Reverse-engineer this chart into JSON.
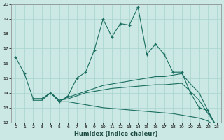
{
  "xlabel": "Humidex (Indice chaleur)",
  "xlim": [
    -0.5,
    23.5
  ],
  "ylim": [
    12,
    20
  ],
  "yticks": [
    12,
    13,
    14,
    15,
    16,
    17,
    18,
    19,
    20
  ],
  "xticks": [
    0,
    1,
    2,
    3,
    4,
    5,
    6,
    7,
    8,
    9,
    10,
    11,
    12,
    13,
    14,
    15,
    16,
    17,
    18,
    19,
    20,
    21,
    22,
    23
  ],
  "bg_color": "#cce8e4",
  "grid_color": "#a8d4cf",
  "line_color": "#1a6e60",
  "lines": [
    {
      "x": [
        0,
        1,
        2,
        3,
        4,
        5,
        6,
        7,
        8,
        9,
        10,
        11,
        12,
        13,
        14,
        15,
        16,
        17,
        18,
        19,
        20,
        21,
        22,
        23
      ],
      "y": [
        16.4,
        15.3,
        13.6,
        13.6,
        14.0,
        13.4,
        13.8,
        15.0,
        15.4,
        16.9,
        19.0,
        17.8,
        18.7,
        18.6,
        19.8,
        16.6,
        17.3,
        16.6,
        15.4,
        15.4,
        14.0,
        13.0,
        12.8,
        11.6
      ],
      "marker": true
    },
    {
      "x": [
        2,
        3,
        4,
        5,
        6,
        7,
        8,
        9,
        10,
        11,
        12,
        13,
        14,
        15,
        16,
        17,
        18,
        19,
        20,
        21,
        22,
        23
      ],
      "y": [
        13.6,
        13.6,
        14.0,
        13.5,
        13.7,
        13.9,
        14.1,
        14.3,
        14.5,
        14.6,
        14.7,
        14.8,
        14.9,
        15.0,
        15.1,
        15.1,
        15.2,
        15.3,
        14.6,
        14.0,
        12.8,
        11.7
      ],
      "marker": false
    },
    {
      "x": [
        2,
        3,
        4,
        5,
        6,
        7,
        8,
        9,
        10,
        11,
        12,
        13,
        14,
        15,
        16,
        17,
        18,
        19,
        20,
        21,
        22,
        23
      ],
      "y": [
        13.6,
        13.6,
        14.0,
        13.5,
        13.6,
        13.8,
        14.0,
        14.1,
        14.2,
        14.3,
        14.35,
        14.4,
        14.45,
        14.5,
        14.55,
        14.55,
        14.6,
        14.65,
        14.1,
        13.5,
        12.6,
        11.8
      ],
      "marker": false
    },
    {
      "x": [
        2,
        3,
        4,
        5,
        6,
        7,
        8,
        9,
        10,
        11,
        12,
        13,
        14,
        15,
        16,
        17,
        18,
        19,
        20,
        21,
        22,
        23
      ],
      "y": [
        13.5,
        13.5,
        14.0,
        13.4,
        13.4,
        13.3,
        13.2,
        13.1,
        13.0,
        12.95,
        12.9,
        12.85,
        12.8,
        12.75,
        12.7,
        12.65,
        12.6,
        12.5,
        12.4,
        12.3,
        12.1,
        11.7
      ],
      "marker": false
    }
  ]
}
